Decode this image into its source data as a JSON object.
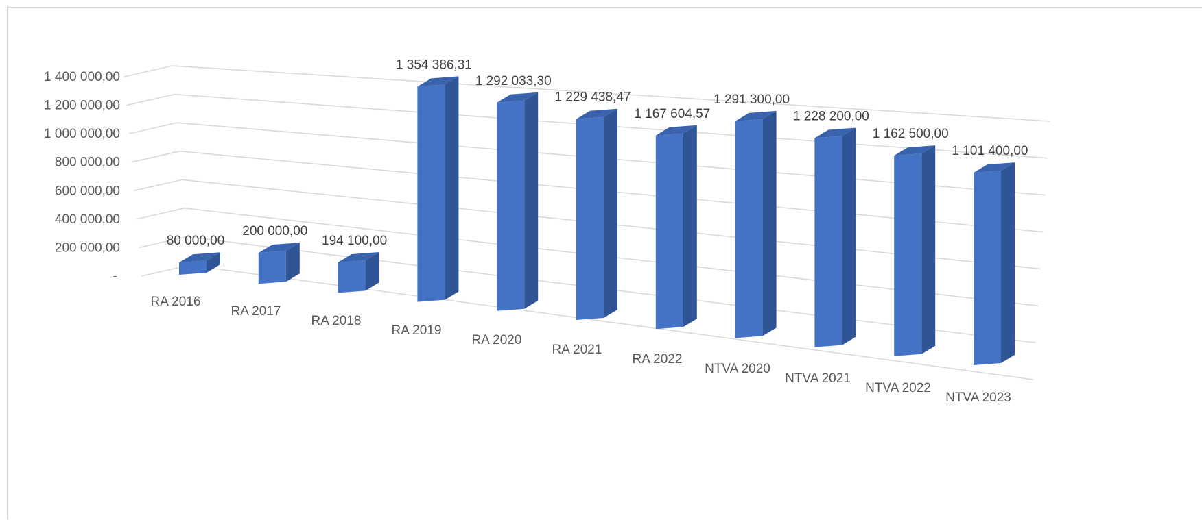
{
  "chart_data": {
    "type": "bar",
    "style": "3d-column",
    "categories": [
      "RA 2016",
      "RA 2017",
      "RA 2018",
      "RA 2019",
      "RA 2020",
      "RA 2021",
      "RA 2022",
      "NTVA 2020",
      "NTVA 2021",
      "NTVA 2022",
      "NTVA 2023"
    ],
    "values": [
      80000.0,
      200000.0,
      194100.0,
      1354386.31,
      1292033.3,
      1229438.47,
      1167604.57,
      1291300.0,
      1228200.0,
      1162500.0,
      1101400.0
    ],
    "data_labels": [
      "80 000,00",
      "200 000,00",
      "194 100,00",
      "1 354 386,31",
      "1 292 033,30",
      "1 229 438,47",
      "1 167 604,57",
      "1 291 300,00",
      "1 228 200,00",
      "1 162 500,00",
      "1 101 400,00"
    ],
    "y_ticks": [
      0,
      200000,
      400000,
      600000,
      800000,
      1000000,
      1200000,
      1400000
    ],
    "y_tick_labels": [
      "-",
      "200 000,00",
      "400 000,00",
      "600 000,00",
      "800 000,00",
      "1 000 000,00",
      "1 200 000,00",
      "1 400 000,00"
    ],
    "ylim": [
      0,
      1400000
    ],
    "grid": true,
    "legend": "none",
    "title": "",
    "xlabel": "",
    "ylabel": "",
    "colors": {
      "bar_front": "#4472C4",
      "bar_side": "#2F5597",
      "bar_top": "#3A63AE",
      "grid": "#D9D9D9",
      "label_text": "#595959"
    }
  }
}
